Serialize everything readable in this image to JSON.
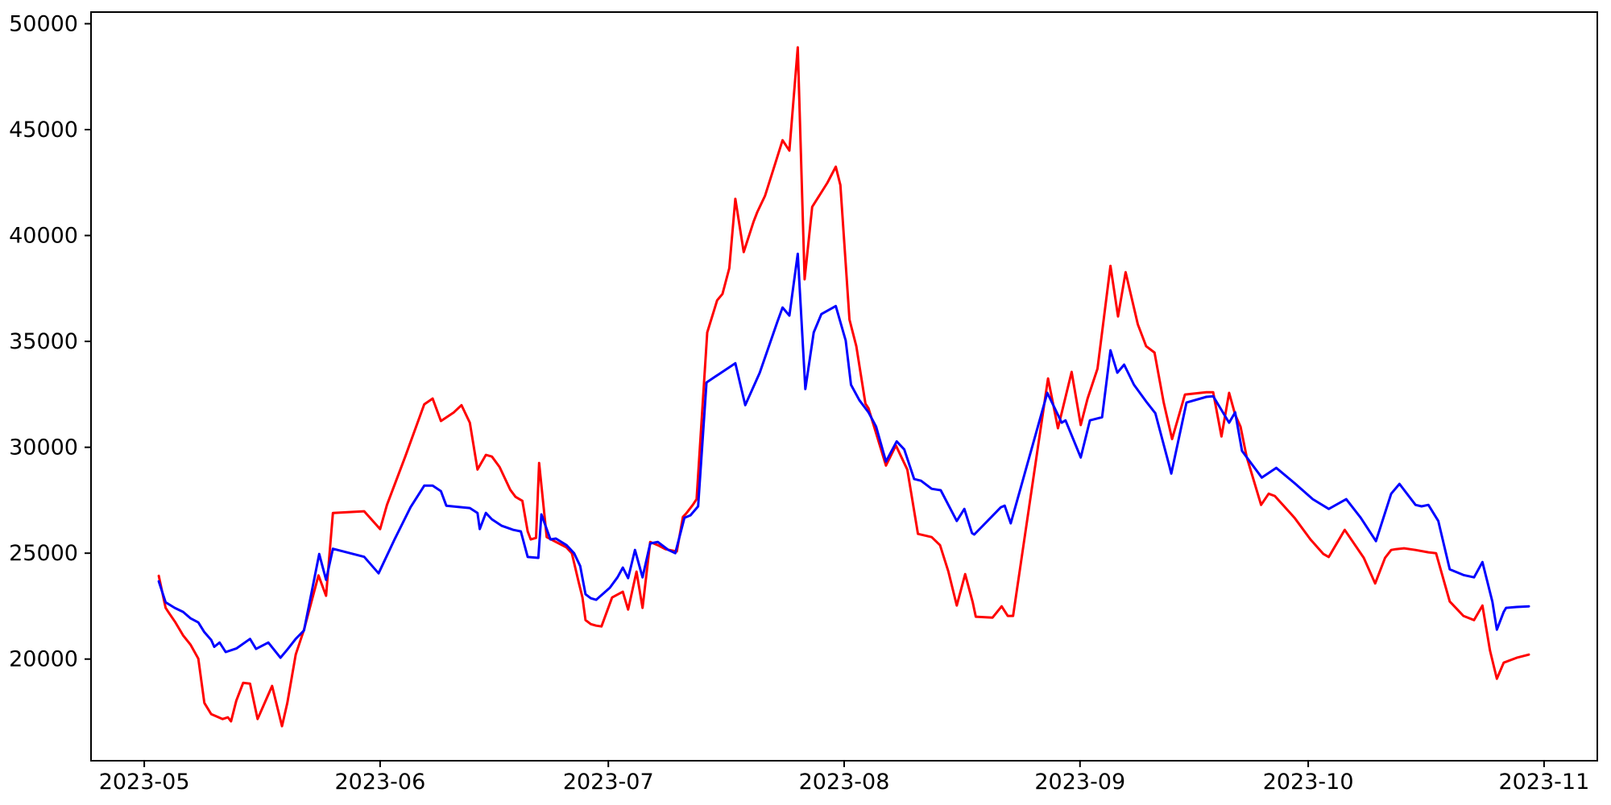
{
  "figure": {
    "background": "#ffffff",
    "frame_color": "#000000",
    "tick_color": "#000000",
    "tick_label_color": "#000000",
    "tick_font_size": 27
  },
  "chart_data": {
    "type": "line",
    "title": "",
    "xlabel": "",
    "ylabel": "",
    "grid": false,
    "legend": "none",
    "x_axis": {
      "unit": "date",
      "epoch_label": "2023-05-01",
      "tick_labels": [
        "2023-05",
        "2023-06",
        "2023-07",
        "2023-08",
        "2023-09",
        "2023-10",
        "2023-11"
      ],
      "tick_days": [
        0,
        31,
        61,
        92,
        123,
        153,
        184
      ],
      "lim_days": [
        -7,
        191
      ]
    },
    "y_axis": {
      "tick_values": [
        20000,
        25000,
        30000,
        35000,
        40000,
        45000,
        50000
      ],
      "lim": [
        15200,
        50550
      ]
    },
    "series": [
      {
        "name": "red",
        "color": "#ff0000",
        "line_width": 3,
        "points": [
          [
            1.9,
            23930
          ],
          [
            2.8,
            22420
          ],
          [
            3.3,
            22150
          ],
          [
            4.1,
            21730
          ],
          [
            5.1,
            21120
          ],
          [
            6.1,
            20670
          ],
          [
            7.1,
            20020
          ],
          [
            7.9,
            17930
          ],
          [
            8.8,
            17400
          ],
          [
            10.3,
            17170
          ],
          [
            11.0,
            17250
          ],
          [
            11.4,
            17060
          ],
          [
            12.1,
            18040
          ],
          [
            13.0,
            18880
          ],
          [
            13.9,
            18840
          ],
          [
            14.9,
            17170
          ],
          [
            16.8,
            18730
          ],
          [
            18.1,
            16830
          ],
          [
            18.8,
            17930
          ],
          [
            19.9,
            20210
          ],
          [
            21.0,
            21390
          ],
          [
            22.9,
            23950
          ],
          [
            23.9,
            22990
          ],
          [
            24.8,
            26900
          ],
          [
            28.9,
            26980
          ],
          [
            31.0,
            26140
          ],
          [
            31.9,
            27280
          ],
          [
            34.3,
            29560
          ],
          [
            36.8,
            32030
          ],
          [
            37.9,
            32300
          ],
          [
            39.0,
            31240
          ],
          [
            40.7,
            31650
          ],
          [
            41.7,
            31990
          ],
          [
            42.8,
            31160
          ],
          [
            43.8,
            28950
          ],
          [
            44.9,
            29640
          ],
          [
            45.7,
            29560
          ],
          [
            46.7,
            29070
          ],
          [
            48.1,
            28000
          ],
          [
            48.8,
            27660
          ],
          [
            49.7,
            27470
          ],
          [
            50.4,
            26030
          ],
          [
            50.8,
            25650
          ],
          [
            51.5,
            25720
          ],
          [
            51.9,
            29260
          ],
          [
            52.9,
            25760
          ],
          [
            54.1,
            25530
          ],
          [
            55.5,
            25270
          ],
          [
            56.2,
            25000
          ],
          [
            57.1,
            23630
          ],
          [
            57.6,
            22910
          ],
          [
            58.0,
            21840
          ],
          [
            58.7,
            21650
          ],
          [
            59.4,
            21580
          ],
          [
            60.1,
            21540
          ],
          [
            61.5,
            22910
          ],
          [
            62.9,
            23180
          ],
          [
            63.6,
            22340
          ],
          [
            64.7,
            24130
          ],
          [
            65.5,
            22420
          ],
          [
            66.5,
            25530
          ],
          [
            67.5,
            25380
          ],
          [
            68.5,
            25190
          ],
          [
            70.0,
            25080
          ],
          [
            70.8,
            26710
          ],
          [
            71.2,
            26860
          ],
          [
            72.1,
            27280
          ],
          [
            72.6,
            27550
          ],
          [
            74.0,
            35420
          ],
          [
            75.3,
            36940
          ],
          [
            76.0,
            37240
          ],
          [
            76.9,
            38460
          ],
          [
            77.7,
            41730
          ],
          [
            78.8,
            39220
          ],
          [
            80.1,
            40660
          ],
          [
            80.6,
            41120
          ],
          [
            81.6,
            41880
          ],
          [
            82.7,
            43130
          ],
          [
            83.9,
            44500
          ],
          [
            84.8,
            44010
          ],
          [
            85.9,
            48880
          ],
          [
            86.8,
            37930
          ],
          [
            87.8,
            41350
          ],
          [
            89.8,
            42490
          ],
          [
            90.9,
            43250
          ],
          [
            91.5,
            42380
          ],
          [
            92.7,
            36030
          ],
          [
            93.6,
            34770
          ],
          [
            94.8,
            32060
          ],
          [
            95.2,
            31840
          ],
          [
            97.5,
            29140
          ],
          [
            98.8,
            30090
          ],
          [
            100.3,
            28950
          ],
          [
            101.7,
            25910
          ],
          [
            103.5,
            25760
          ],
          [
            104.6,
            25380
          ],
          [
            105.7,
            24130
          ],
          [
            106.8,
            22530
          ],
          [
            107.9,
            24010
          ],
          [
            108.9,
            22680
          ],
          [
            109.3,
            22000
          ],
          [
            111.5,
            21960
          ],
          [
            112.7,
            22490
          ],
          [
            113.5,
            22040
          ],
          [
            114.2,
            22040
          ],
          [
            118.8,
            33250
          ],
          [
            120.1,
            30900
          ],
          [
            121.9,
            33560
          ],
          [
            123.1,
            31050
          ],
          [
            124.0,
            32300
          ],
          [
            125.3,
            33710
          ],
          [
            127.0,
            38570
          ],
          [
            128.0,
            36180
          ],
          [
            129.0,
            38270
          ],
          [
            130.6,
            35800
          ],
          [
            131.7,
            34770
          ],
          [
            132.8,
            34470
          ],
          [
            134.0,
            32110
          ],
          [
            135.1,
            30390
          ],
          [
            136.8,
            32490
          ],
          [
            139.6,
            32600
          ],
          [
            140.5,
            32600
          ],
          [
            141.6,
            30510
          ],
          [
            142.6,
            32570
          ],
          [
            143.4,
            31540
          ],
          [
            144.1,
            30970
          ],
          [
            144.9,
            29560
          ],
          [
            146.8,
            27280
          ],
          [
            147.8,
            27810
          ],
          [
            148.6,
            27700
          ],
          [
            151.2,
            26670
          ],
          [
            153.3,
            25650
          ],
          [
            155.0,
            24960
          ],
          [
            155.7,
            24820
          ],
          [
            157.8,
            26100
          ],
          [
            160.3,
            24780
          ],
          [
            161.8,
            23570
          ],
          [
            163.1,
            24780
          ],
          [
            163.9,
            25150
          ],
          [
            164.5,
            25190
          ],
          [
            165.6,
            25230
          ],
          [
            167.1,
            25150
          ],
          [
            168.8,
            25040
          ],
          [
            169.8,
            25000
          ],
          [
            171.6,
            22720
          ],
          [
            173.4,
            22040
          ],
          [
            174.8,
            21840
          ],
          [
            175.9,
            22530
          ],
          [
            176.9,
            20400
          ],
          [
            177.8,
            19070
          ],
          [
            178.7,
            19830
          ],
          [
            180.4,
            20060
          ],
          [
            182.0,
            20210
          ]
        ]
      },
      {
        "name": "blue",
        "color": "#0000ff",
        "line_width": 3,
        "points": [
          [
            1.9,
            23670
          ],
          [
            2.8,
            22680
          ],
          [
            4.0,
            22420
          ],
          [
            5.1,
            22230
          ],
          [
            6.1,
            21920
          ],
          [
            7.1,
            21730
          ],
          [
            7.9,
            21270
          ],
          [
            8.8,
            20900
          ],
          [
            9.2,
            20580
          ],
          [
            9.9,
            20780
          ],
          [
            10.7,
            20330
          ],
          [
            12.1,
            20500
          ],
          [
            13.9,
            20950
          ],
          [
            14.7,
            20480
          ],
          [
            16.3,
            20780
          ],
          [
            17.9,
            20060
          ],
          [
            18.8,
            20450
          ],
          [
            19.9,
            20950
          ],
          [
            21.0,
            21350
          ],
          [
            23.0,
            24960
          ],
          [
            23.9,
            23740
          ],
          [
            24.8,
            25210
          ],
          [
            28.9,
            24830
          ],
          [
            30.8,
            24050
          ],
          [
            32.9,
            25650
          ],
          [
            35.0,
            27170
          ],
          [
            36.8,
            28190
          ],
          [
            37.9,
            28190
          ],
          [
            39.0,
            27930
          ],
          [
            39.7,
            27240
          ],
          [
            41.7,
            27170
          ],
          [
            42.8,
            27130
          ],
          [
            43.8,
            26900
          ],
          [
            44.1,
            26140
          ],
          [
            44.9,
            26900
          ],
          [
            45.7,
            26600
          ],
          [
            47.0,
            26290
          ],
          [
            48.5,
            26100
          ],
          [
            49.5,
            26030
          ],
          [
            50.4,
            24820
          ],
          [
            51.8,
            24780
          ],
          [
            52.2,
            26830
          ],
          [
            53.4,
            25650
          ],
          [
            54.1,
            25690
          ],
          [
            55.5,
            25380
          ],
          [
            56.5,
            25000
          ],
          [
            57.3,
            24390
          ],
          [
            58.0,
            23060
          ],
          [
            58.7,
            22870
          ],
          [
            59.4,
            22800
          ],
          [
            61.2,
            23370
          ],
          [
            62.2,
            23860
          ],
          [
            62.9,
            24320
          ],
          [
            63.6,
            23820
          ],
          [
            64.5,
            25150
          ],
          [
            65.5,
            23860
          ],
          [
            66.5,
            25460
          ],
          [
            67.5,
            25530
          ],
          [
            68.9,
            25150
          ],
          [
            69.8,
            25000
          ],
          [
            71.0,
            26670
          ],
          [
            71.8,
            26790
          ],
          [
            72.8,
            27210
          ],
          [
            73.9,
            33060
          ],
          [
            77.7,
            33970
          ],
          [
            79.0,
            31990
          ],
          [
            80.9,
            33520
          ],
          [
            83.2,
            35910
          ],
          [
            83.9,
            36600
          ],
          [
            84.8,
            36220
          ],
          [
            85.9,
            39140
          ],
          [
            86.9,
            32750
          ],
          [
            88.0,
            35420
          ],
          [
            89.0,
            36290
          ],
          [
            90.9,
            36670
          ],
          [
            92.2,
            35040
          ],
          [
            92.9,
            32950
          ],
          [
            94.0,
            32220
          ],
          [
            95.2,
            31650
          ],
          [
            96.2,
            30970
          ],
          [
            97.5,
            29330
          ],
          [
            98.9,
            30280
          ],
          [
            99.9,
            29900
          ],
          [
            101.2,
            28500
          ],
          [
            102.1,
            28420
          ],
          [
            103.5,
            28040
          ],
          [
            104.7,
            27970
          ],
          [
            106.8,
            26520
          ],
          [
            107.8,
            27090
          ],
          [
            108.8,
            25950
          ],
          [
            109.1,
            25880
          ],
          [
            112.6,
            27170
          ],
          [
            113.1,
            27240
          ],
          [
            113.9,
            26410
          ],
          [
            118.7,
            32570
          ],
          [
            120.6,
            31160
          ],
          [
            121.1,
            31270
          ],
          [
            123.1,
            29520
          ],
          [
            124.3,
            31270
          ],
          [
            125.9,
            31420
          ],
          [
            127.0,
            34580
          ],
          [
            127.9,
            33520
          ],
          [
            128.8,
            33900
          ],
          [
            130.1,
            32950
          ],
          [
            131.8,
            32110
          ],
          [
            132.9,
            31610
          ],
          [
            134.7,
            29180
          ],
          [
            135.0,
            28760
          ],
          [
            137.0,
            32110
          ],
          [
            139.6,
            32380
          ],
          [
            140.5,
            32410
          ],
          [
            142.6,
            31160
          ],
          [
            143.4,
            31650
          ],
          [
            144.3,
            29830
          ],
          [
            146.9,
            28570
          ],
          [
            148.8,
            29030
          ],
          [
            151.2,
            28310
          ],
          [
            153.6,
            27550
          ],
          [
            155.7,
            27090
          ],
          [
            158.0,
            27550
          ],
          [
            159.9,
            26670
          ],
          [
            161.9,
            25570
          ],
          [
            163.9,
            27810
          ],
          [
            165.0,
            28270
          ],
          [
            167.1,
            27280
          ],
          [
            167.9,
            27210
          ],
          [
            168.8,
            27280
          ],
          [
            170.1,
            26520
          ],
          [
            171.6,
            24240
          ],
          [
            173.4,
            23970
          ],
          [
            174.8,
            23860
          ],
          [
            175.9,
            24580
          ],
          [
            177.2,
            22720
          ],
          [
            177.8,
            21390
          ],
          [
            178.7,
            22230
          ],
          [
            179.0,
            22420
          ],
          [
            180.4,
            22460
          ],
          [
            182.0,
            22490
          ]
        ]
      }
    ]
  }
}
